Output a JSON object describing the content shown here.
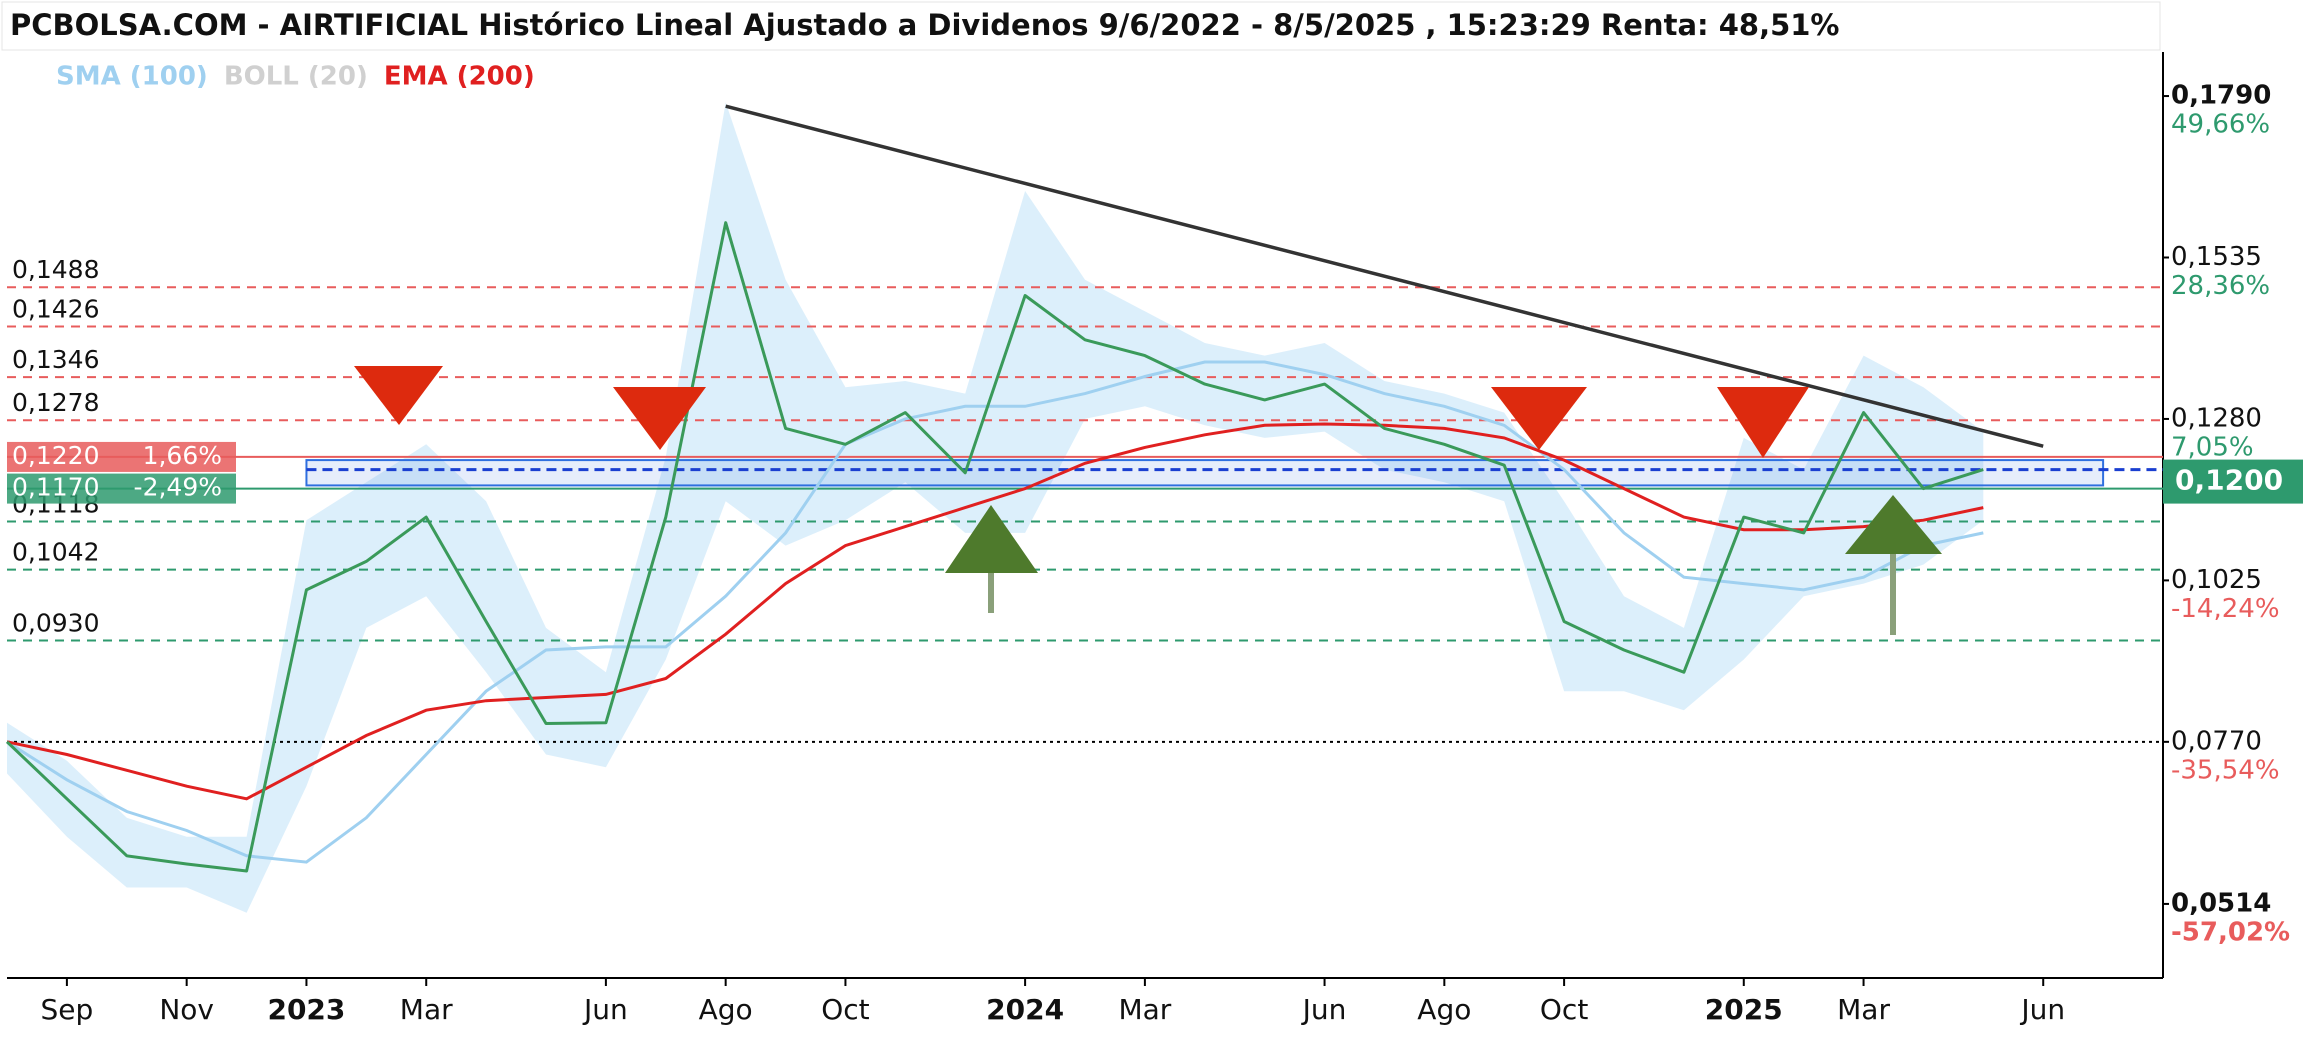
{
  "chart_data": {
    "type": "line",
    "title": "PCBOLSA.COM - AIRTIFICIAL Histórico Lineal Ajustado a Dividenos 9/6/2022 - 8/5/2025 , 15:23:29 Renta: 48,51%",
    "x": [
      "2022-08",
      "2022-09",
      "2022-10",
      "2022-11",
      "2022-12",
      "2023-01",
      "2023-02",
      "2023-03",
      "2023-04",
      "2023-05",
      "2023-06",
      "2023-07",
      "2023-08",
      "2023-09",
      "2023-10",
      "2023-11",
      "2023-12",
      "2024-01",
      "2024-02",
      "2024-03",
      "2024-04",
      "2024-05",
      "2024-06",
      "2024-07",
      "2024-08",
      "2024-09",
      "2024-10",
      "2024-11",
      "2024-12",
      "2025-01",
      "2025-02",
      "2025-03",
      "2025-04",
      "2025-05"
    ],
    "values": [
      0.077,
      0.068,
      0.059,
      0.0577,
      0.0566,
      0.101,
      0.1055,
      0.1125,
      0.096,
      0.0799,
      0.08,
      0.1125,
      0.159,
      0.1265,
      0.124,
      0.129,
      0.1195,
      0.1475,
      0.1405,
      0.138,
      0.1335,
      0.131,
      0.1335,
      0.1265,
      0.124,
      0.1207,
      0.096,
      0.0915,
      0.088,
      0.1125,
      0.11,
      0.129,
      0.117,
      0.12
    ],
    "color": "#3a9a5a",
    "series": [
      {
        "name": "SMA (100)",
        "color": "#9fd0f0",
        "values": [
          0.077,
          0.071,
          0.066,
          0.063,
          0.059,
          0.058,
          0.065,
          0.075,
          0.085,
          0.0915,
          0.092,
          0.092,
          0.1,
          0.11,
          0.124,
          0.128,
          0.13,
          0.13,
          0.132,
          0.1347,
          0.137,
          0.137,
          0.135,
          0.132,
          0.13,
          0.127,
          0.12,
          0.11,
          0.103,
          0.102,
          0.101,
          0.103,
          0.108,
          0.11
        ]
      },
      {
        "name": "BOLL (20)",
        "color": "#d0d0d0",
        "fill": "#d6ecfa",
        "upper": [
          0.08,
          0.074,
          0.065,
          0.062,
          0.062,
          0.112,
          0.118,
          0.124,
          0.115,
          0.095,
          0.088,
          0.122,
          0.178,
          0.15,
          0.133,
          0.134,
          0.132,
          0.164,
          0.15,
          0.145,
          0.14,
          0.138,
          0.14,
          0.134,
          0.132,
          0.129,
          0.115,
          0.1,
          0.095,
          0.125,
          0.12,
          0.138,
          0.133,
          0.126
        ],
        "lower": [
          0.072,
          0.062,
          0.054,
          0.054,
          0.05,
          0.07,
          0.095,
          0.1,
          0.088,
          0.075,
          0.073,
          0.09,
          0.115,
          0.108,
          0.112,
          0.118,
          0.11,
          0.11,
          0.128,
          0.13,
          0.127,
          0.125,
          0.126,
          0.12,
          0.118,
          0.115,
          0.085,
          0.085,
          0.082,
          0.09,
          0.1,
          0.102,
          0.105,
          0.112
        ]
      },
      {
        "name": "EMA (200)",
        "color": "#e02020",
        "values": [
          0.077,
          0.075,
          0.0725,
          0.07,
          0.068,
          0.073,
          0.078,
          0.082,
          0.0835,
          0.084,
          0.0845,
          0.087,
          0.094,
          0.102,
          0.108,
          0.111,
          0.114,
          0.117,
          0.121,
          0.1235,
          0.1255,
          0.127,
          0.1272,
          0.127,
          0.1265,
          0.125,
          0.1215,
          0.117,
          0.1125,
          0.1105,
          0.1105,
          0.111,
          0.112,
          0.114
        ]
      }
    ],
    "xlim": [
      "2022-08",
      "2025-08"
    ],
    "xticks": [
      {
        "value": "2022-09",
        "label": "Sep"
      },
      {
        "value": "2022-11",
        "label": "Nov"
      },
      {
        "value": "2023-01",
        "label": "2023"
      },
      {
        "value": "2023-03",
        "label": "Mar"
      },
      {
        "value": "2023-06",
        "label": "Jun"
      },
      {
        "value": "2023-08",
        "label": "Ago"
      },
      {
        "value": "2023-10",
        "label": "Oct"
      },
      {
        "value": "2024-01",
        "label": "2024"
      },
      {
        "value": "2024-03",
        "label": "Mar"
      },
      {
        "value": "2024-06",
        "label": "Jun"
      },
      {
        "value": "2024-08",
        "label": "Ago"
      },
      {
        "value": "2024-10",
        "label": "Oct"
      },
      {
        "value": "2025-01",
        "label": "2025"
      },
      {
        "value": "2025-03",
        "label": "Mar"
      },
      {
        "value": "2025-06",
        "label": "Jun"
      }
    ],
    "ylim": [
      0.0397,
      0.1918
    ],
    "yticks": [
      {
        "value": 0.179,
        "label": "0,1790"
      },
      {
        "value": 0.1535,
        "label": "0,1535"
      },
      {
        "value": 0.128,
        "label": "0,1280"
      },
      {
        "value": 0.1025,
        "label": "0,1025"
      },
      {
        "value": 0.077,
        "label": "0,0770"
      },
      {
        "value": 0.0514,
        "label": "0,0514"
      }
    ],
    "ytick_changes": [
      {
        "value": 49.66,
        "label": "49,66%"
      },
      {
        "value": 28.36,
        "label": "28,36%"
      },
      {
        "value": 7.05,
        "label": "7,05%"
      },
      {
        "value": -14.24,
        "label": "-14,24%"
      },
      {
        "value": -35.54,
        "label": "-35,54%"
      },
      {
        "value": -57.02,
        "label": "-57,02%"
      }
    ],
    "last_price": {
      "value": 0.12,
      "label": "0,1200",
      "color": "#2e9a6e"
    },
    "levels": [
      {
        "value": 0.1488,
        "label": "0,1488",
        "color": "#e85c5c"
      },
      {
        "value": 0.1426,
        "label": "0,1426",
        "color": "#e85c5c"
      },
      {
        "value": 0.1346,
        "label": "0,1346",
        "color": "#e85c5c"
      },
      {
        "value": 0.1278,
        "label": "0,1278",
        "color": "#e85c5c"
      },
      {
        "value": 0.1118,
        "label": "0,1118",
        "color": "#2e9a6e"
      },
      {
        "value": 0.1042,
        "label": "0,1042",
        "color": "#2e9a6e"
      },
      {
        "value": 0.093,
        "label": "0,0930",
        "color": "#2e9a6e"
      },
      {
        "value": 0.077,
        "color": "#000000"
      }
    ],
    "marked_levels": [
      {
        "value": 0.122,
        "label": "0,1220",
        "change": {
          "value": 1.66,
          "label": "1,66%"
        },
        "color": "#e85c5c"
      },
      {
        "value": 0.117,
        "label": "0,1170",
        "change": {
          "value": -2.49,
          "label": "-2,49%"
        },
        "color": "#2e9a6e"
      }
    ],
    "zone": {
      "x": [
        "2023-01",
        "2025-07"
      ],
      "y": [
        0.1175,
        0.1215
      ],
      "color": "#2f6fdf"
    },
    "trendline": {
      "x": [
        "2023-08",
        "2025-06"
      ],
      "values": [
        0.1774,
        0.1237
      ],
      "color": "#333333"
    }
  }
}
